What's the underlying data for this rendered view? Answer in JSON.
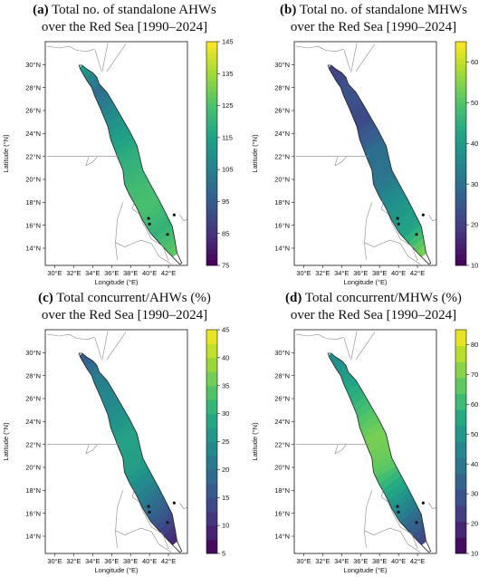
{
  "chart_data": [
    {
      "type": "heatmap",
      "panel_letter": "(a)",
      "title_line1": "Total no. of standalone AHWs",
      "title_line2": "over the Red Sea [1990–2024]",
      "xlabel": "Longitude (°E)",
      "ylabel": "Latitude (°N)",
      "xticks": [
        "30°E",
        "32°E",
        "34°E",
        "36°E",
        "38°E",
        "40°E",
        "42°E"
      ],
      "yticks": [
        "14°N",
        "16°N",
        "18°N",
        "20°N",
        "22°N",
        "24°N",
        "26°N",
        "28°N",
        "30°N"
      ],
      "colorbar_ticks": [
        "75",
        "85",
        "95",
        "105",
        "115",
        "125",
        "135",
        "145"
      ],
      "colorbar_range": [
        75,
        145
      ],
      "colormap": [
        "#440154",
        "#46337e",
        "#365c8d",
        "#277f8e",
        "#1fa187",
        "#4ac16d",
        "#a0da39",
        "#fde725"
      ],
      "region_values": [
        115,
        100,
        110,
        118,
        122,
        125,
        120,
        128
      ],
      "colorbar_type": "continuous"
    },
    {
      "type": "heatmap",
      "panel_letter": "(b)",
      "title_line1": "Total no. of standalone MHWs",
      "title_line2": "over the Red Sea [1990–2024]",
      "xlabel": "Longitude (°E)",
      "ylabel": "Latitude (°N)",
      "xticks": [
        "30°E",
        "32°E",
        "34°E",
        "36°E",
        "38°E",
        "40°E",
        "42°E"
      ],
      "yticks": [
        "14°N",
        "16°N",
        "18°N",
        "20°N",
        "22°N",
        "24°N",
        "26°N",
        "28°N",
        "30°N"
      ],
      "colorbar_ticks": [
        "10",
        "20",
        "30",
        "40",
        "50",
        "60"
      ],
      "colorbar_range": [
        10,
        65
      ],
      "colormap": [
        "#440154",
        "#482475",
        "#414487",
        "#355f8d",
        "#2a788e",
        "#21918c",
        "#22a884",
        "#44bf70",
        "#7ad151",
        "#bddf26",
        "#fde725"
      ],
      "region_values": [
        20,
        24,
        22,
        30,
        32,
        38,
        42,
        55
      ],
      "colorbar_type": "continuous"
    },
    {
      "type": "heatmap",
      "panel_letter": "(c)",
      "title_line1": "Total concurrent/AHWs (%)",
      "title_line2": "over the Red Sea [1990–2024]",
      "xlabel": "Longitude (°E)",
      "ylabel": "Latitude (°N)",
      "xticks": [
        "30°E",
        "32°E",
        "34°E",
        "36°E",
        "38°E",
        "40°E",
        "42°E"
      ],
      "yticks": [
        "14°N",
        "16°N",
        "18°N",
        "20°N",
        "22°N",
        "24°N",
        "26°N",
        "28°N",
        "30°N"
      ],
      "colorbar_ticks": [
        "5",
        "10",
        "15",
        "20",
        "25",
        "30",
        "35",
        "40",
        "45"
      ],
      "colorbar_range": [
        5,
        45
      ],
      "colormap": [
        "#440154",
        "#472d7b",
        "#3b528b",
        "#2c728e",
        "#21918c",
        "#28ae80",
        "#5ec962",
        "#addc30",
        "#fde725"
      ],
      "region_values": [
        16,
        22,
        24,
        28,
        27,
        22,
        16,
        9
      ],
      "colorbar_type": "discrete"
    },
    {
      "type": "heatmap",
      "panel_letter": "(d)",
      "title_line1": "Total concurrent/MHWs (%)",
      "title_line2": "over the Red Sea [1990–2024]",
      "xlabel": "Longitude (°E)",
      "ylabel": "Latitude (°N)",
      "xticks": [
        "30°E",
        "32°E",
        "34°E",
        "36°E",
        "38°E",
        "40°E",
        "42°E"
      ],
      "yticks": [
        "14°N",
        "16°N",
        "18°N",
        "20°N",
        "22°N",
        "24°N",
        "26°N",
        "28°N",
        "30°N"
      ],
      "colorbar_ticks": [
        "10",
        "20",
        "30",
        "40",
        "50",
        "60",
        "70",
        "80"
      ],
      "colorbar_range": [
        10,
        85
      ],
      "colormap": [
        "#440154",
        "#482475",
        "#414487",
        "#355f8d",
        "#2a788e",
        "#21918c",
        "#22a884",
        "#44bf70",
        "#7ad151",
        "#bddf26",
        "#fde725"
      ],
      "region_values": [
        45,
        52,
        62,
        70,
        66,
        52,
        38,
        25
      ],
      "colorbar_type": "discrete"
    }
  ]
}
